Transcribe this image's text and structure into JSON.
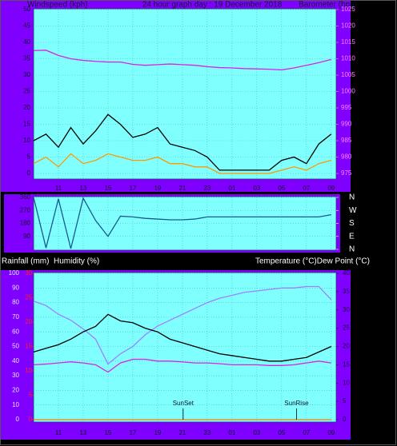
{
  "chart_data": [
    {
      "type": "line",
      "title": "24 hour graph day : 19 December 2018",
      "ylabel": "Windspeed (kph)",
      "y2label": "Barometer (hpa)",
      "x": [
        9,
        10,
        11,
        12,
        13,
        14,
        15,
        16,
        17,
        18,
        19,
        20,
        21,
        22,
        23,
        24,
        25,
        26,
        27,
        28,
        29,
        30,
        31,
        32,
        33
      ],
      "xlim": [
        9,
        33.4
      ],
      "xticks": [
        11,
        13,
        15,
        17,
        19,
        21,
        23,
        {
          "value": 25,
          "label": "01"
        },
        {
          "value": 27,
          "label": "03"
        },
        {
          "value": 29,
          "label": "05"
        },
        {
          "value": 31,
          "label": "07"
        },
        {
          "value": 33,
          "label": "09"
        }
      ],
      "ylim": [
        0,
        50
      ],
      "yticks": [
        0,
        5,
        10,
        15,
        20,
        25,
        30,
        35,
        40,
        45,
        50
      ],
      "y2lim": [
        975,
        1025
      ],
      "y2ticks": [
        975,
        980,
        985,
        990,
        995,
        1000,
        1005,
        1010,
        1015,
        1020,
        1025
      ],
      "grid": true,
      "series": [
        {
          "color": "#000000",
          "values": [
            10,
            12,
            8,
            14,
            9,
            13,
            18,
            15,
            11,
            12,
            14,
            9,
            8,
            7,
            5,
            1,
            1,
            1,
            1,
            1,
            4,
            5,
            3,
            9,
            12
          ]
        },
        {
          "color": "#ff9900",
          "values": [
            3,
            5,
            2,
            6,
            3,
            4,
            6,
            5,
            4,
            4,
            5,
            3,
            3,
            2,
            2,
            0,
            0,
            0,
            0,
            0,
            1,
            2,
            1,
            3,
            4
          ]
        },
        {
          "color": "#e020e0",
          "axis": "y2",
          "values": [
            1012.5,
            1012.6,
            1011,
            1010,
            1009.5,
            1009.2,
            1009,
            1009,
            1008.3,
            1008,
            1008.2,
            1008.4,
            1008.2,
            1008,
            1007.6,
            1007.3,
            1007.2,
            1007,
            1006.9,
            1006.8,
            1006.6,
            1007.2,
            1008,
            1008.8,
            1009.8
          ]
        }
      ]
    },
    {
      "type": "line",
      "x": [
        9,
        10,
        11,
        12,
        13,
        14,
        15,
        16,
        17,
        18,
        19,
        20,
        21,
        22,
        23,
        24,
        25,
        26,
        27,
        28,
        29,
        30,
        31,
        32,
        33
      ],
      "xlim": [
        9,
        33.4
      ],
      "xticks": [
        11,
        13,
        15,
        17,
        19,
        21,
        23,
        25,
        27,
        29,
        31,
        33
      ],
      "ylim": [
        0,
        360
      ],
      "yticks": [
        90,
        180,
        270,
        360
      ],
      "y2lim": [
        0,
        360
      ],
      "y2ticks": [
        {
          "value": 360,
          "label": "N"
        },
        {
          "value": 270,
          "label": "W"
        },
        {
          "value": 180,
          "label": "S"
        },
        {
          "value": 90,
          "label": "E"
        },
        {
          "value": 0,
          "label": "N"
        }
      ],
      "grid": true,
      "series": [
        {
          "color": "#1a5a8a",
          "values": [
            360,
            10,
            350,
            5,
            355,
            200,
            90,
            230,
            225,
            215,
            210,
            205,
            205,
            210,
            225,
            225,
            225,
            225,
            225,
            225,
            225,
            225,
            225,
            225,
            240
          ]
        }
      ]
    },
    {
      "type": "line",
      "ylabel": "Humidity (%)",
      "y3label": "Rainfall (mm)",
      "y2label": "Temperature (°C)Dew Point (°C)",
      "x": [
        9,
        10,
        11,
        12,
        13,
        14,
        15,
        16,
        17,
        18,
        19,
        20,
        21,
        22,
        23,
        24,
        25,
        26,
        27,
        28,
        29,
        30,
        31,
        32,
        33
      ],
      "xlim": [
        9,
        33.4
      ],
      "xticks": [
        11,
        13,
        15,
        17,
        19,
        21,
        23,
        {
          "value": 25,
          "label": "01"
        },
        {
          "value": 27,
          "label": "03"
        },
        {
          "value": 29,
          "label": "05"
        },
        {
          "value": 31,
          "label": "07"
        },
        {
          "value": 33,
          "label": "09"
        }
      ],
      "ylim": [
        0,
        100
      ],
      "yticks": [
        0,
        10,
        20,
        30,
        40,
        50,
        60,
        70,
        80,
        90,
        100
      ],
      "y3lim": [
        0,
        30
      ],
      "y3ticks": [
        0,
        5,
        10,
        15,
        20,
        25,
        30
      ],
      "y2lim": [
        0,
        40
      ],
      "y2ticks": [
        0,
        5,
        10,
        15,
        20,
        25,
        30,
        35,
        40
      ],
      "grid": true,
      "series": [
        {
          "color": "#ff8000",
          "axis": "y3",
          "values": [
            0,
            0,
            0,
            0,
            0,
            0,
            0,
            0,
            0,
            0,
            0,
            0,
            0,
            0,
            0,
            0,
            0,
            0,
            0,
            0,
            0,
            0,
            0,
            0,
            0
          ]
        },
        {
          "color": "#a080ff",
          "values": [
            81,
            78,
            72,
            68,
            62,
            55,
            38,
            45,
            50,
            58,
            64,
            68,
            72,
            76,
            80,
            83,
            85,
            87,
            88,
            89,
            90,
            90,
            91,
            91,
            82
          ]
        },
        {
          "color": "#e020e0",
          "axis": "y2",
          "values": [
            15,
            15.2,
            15.5,
            15.8,
            15.5,
            15,
            13,
            15.5,
            16.5,
            16.5,
            16,
            16,
            15.8,
            15.5,
            15.5,
            15.3,
            15,
            15,
            15,
            14.8,
            14.8,
            15,
            15.5,
            16,
            15.5
          ]
        },
        {
          "color": "#000000",
          "axis": "y2",
          "values": [
            18.5,
            19.5,
            20.5,
            22,
            24,
            25.5,
            28.8,
            27,
            26.5,
            25,
            24,
            22,
            21,
            20,
            19,
            18,
            17.5,
            17,
            16.5,
            16,
            16,
            16.5,
            17,
            18.5,
            20
          ]
        }
      ],
      "annotations": [
        {
          "text": "SunSet",
          "x": 21.06
        },
        {
          "text": "SunRise",
          "x": 30.2
        }
      ]
    }
  ]
}
